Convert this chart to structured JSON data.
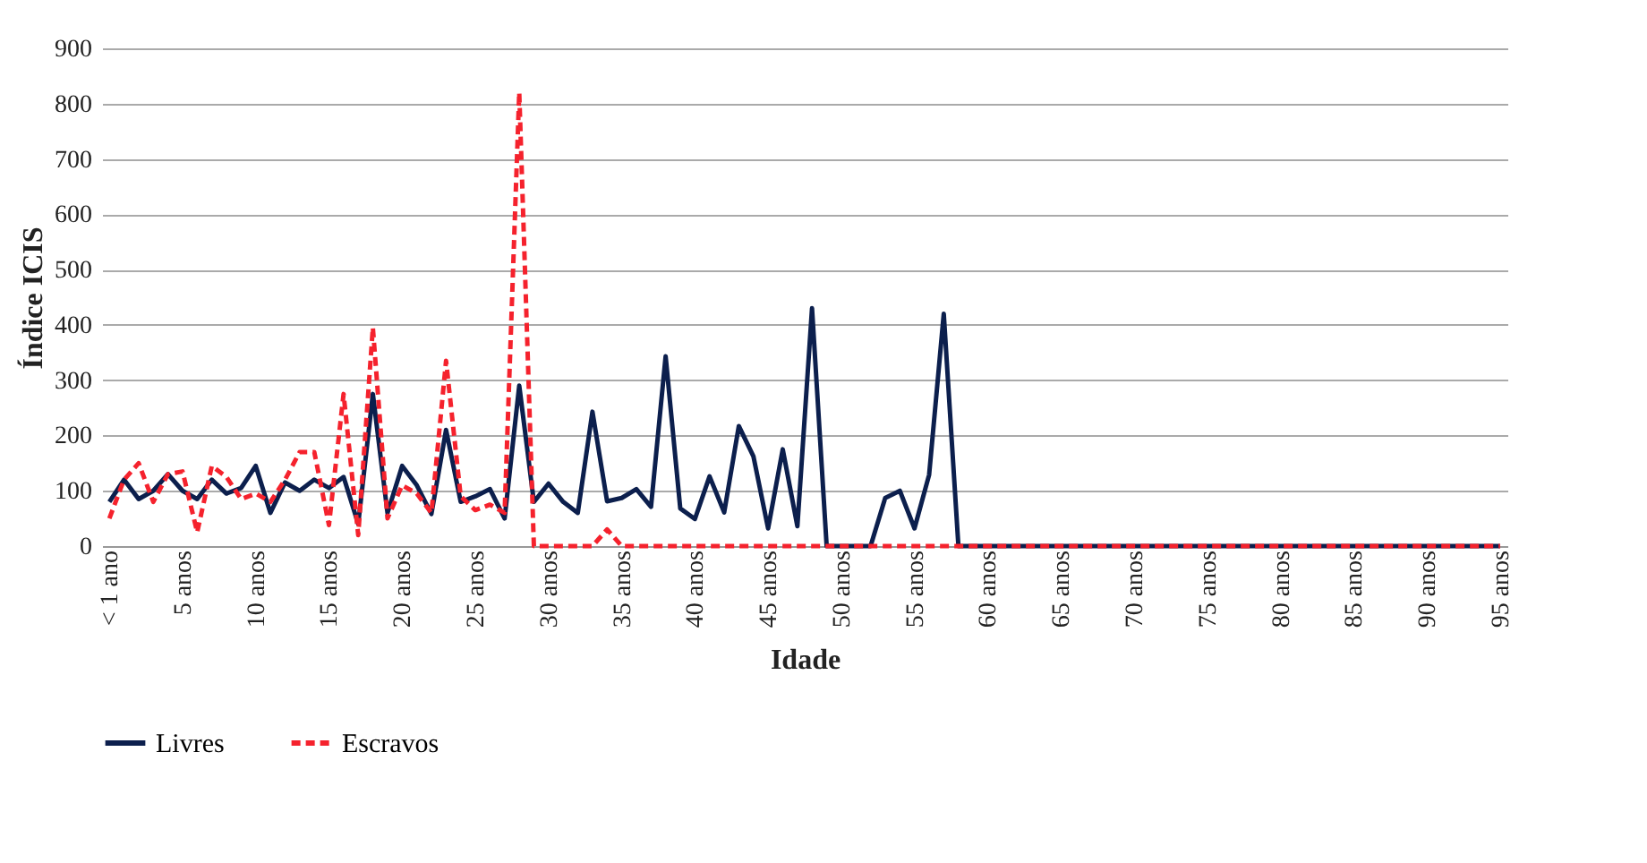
{
  "chart_data": {
    "type": "line",
    "xlabel": "Idade",
    "ylabel": "Índice ICIS",
    "categories": [
      "< 1 ano",
      null,
      null,
      null,
      null,
      "5 anos",
      null,
      null,
      null,
      null,
      "10 anos",
      null,
      null,
      null,
      null,
      "15 anos",
      null,
      null,
      null,
      null,
      "20 anos",
      null,
      null,
      null,
      null,
      "25 anos",
      null,
      null,
      null,
      null,
      "30 anos",
      null,
      null,
      null,
      null,
      "35 anos",
      null,
      null,
      null,
      null,
      "40 anos",
      null,
      null,
      null,
      null,
      "45 anos",
      null,
      null,
      null,
      null,
      "50 anos",
      null,
      null,
      null,
      null,
      "55 anos",
      null,
      null,
      null,
      null,
      "60 anos",
      null,
      null,
      null,
      null,
      "65 anos",
      null,
      null,
      null,
      null,
      "70 anos",
      null,
      null,
      null,
      null,
      "75 anos",
      null,
      null,
      null,
      null,
      "80 anos",
      null,
      null,
      null,
      null,
      "85 anos",
      null,
      null,
      null,
      null,
      "90 anos",
      null,
      null,
      null,
      null,
      "95 anos"
    ],
    "series": [
      {
        "name": "Livres",
        "color": "#0c1f4d",
        "line_style": "solid",
        "values": [
          80,
          120,
          85,
          100,
          130,
          100,
          85,
          120,
          95,
          105,
          145,
          60,
          115,
          100,
          120,
          105,
          125,
          40,
          275,
          60,
          145,
          110,
          58,
          210,
          80,
          90,
          103,
          50,
          290,
          80,
          113,
          80,
          60,
          243,
          81,
          87,
          103,
          71,
          343,
          68,
          49,
          126,
          61,
          217,
          162,
          32,
          175,
          36,
          430,
          0,
          0,
          0,
          0,
          87,
          100,
          32,
          129,
          420,
          0,
          0,
          0,
          0,
          0,
          0,
          0,
          0,
          0,
          0,
          0,
          0,
          0,
          0,
          0,
          0,
          0,
          0,
          0,
          0,
          0,
          0,
          0,
          0,
          0,
          0,
          0,
          0,
          0,
          0,
          0,
          0,
          0,
          0,
          0,
          0,
          0,
          0
        ]
      },
      {
        "name": "Escravos",
        "color": "#f5222d",
        "line_style": "dashed",
        "values": [
          50,
          120,
          150,
          80,
          130,
          135,
          25,
          145,
          125,
          85,
          95,
          80,
          120,
          170,
          170,
          38,
          275,
          20,
          395,
          50,
          110,
          95,
          60,
          335,
          90,
          65,
          75,
          60,
          820,
          0,
          0,
          0,
          0,
          0,
          30,
          0,
          0,
          0,
          0,
          0,
          0,
          0,
          0,
          0,
          0,
          0,
          0,
          0,
          0,
          0,
          0,
          0,
          0,
          0,
          0,
          0,
          0,
          0,
          0,
          0,
          0,
          0,
          0,
          0,
          0,
          0,
          0,
          0,
          0,
          0,
          0,
          0,
          0,
          0,
          0,
          0,
          0,
          0,
          0,
          0,
          0,
          0,
          0,
          0,
          0,
          0,
          0,
          0,
          0,
          0,
          0,
          0,
          0,
          0,
          0,
          0
        ]
      }
    ],
    "ylim": [
      0,
      900
    ],
    "yticks": [
      0,
      100,
      200,
      300,
      400,
      500,
      600,
      700,
      800,
      900
    ],
    "grid": "y",
    "legend": "bottom",
    "marker": "none"
  }
}
